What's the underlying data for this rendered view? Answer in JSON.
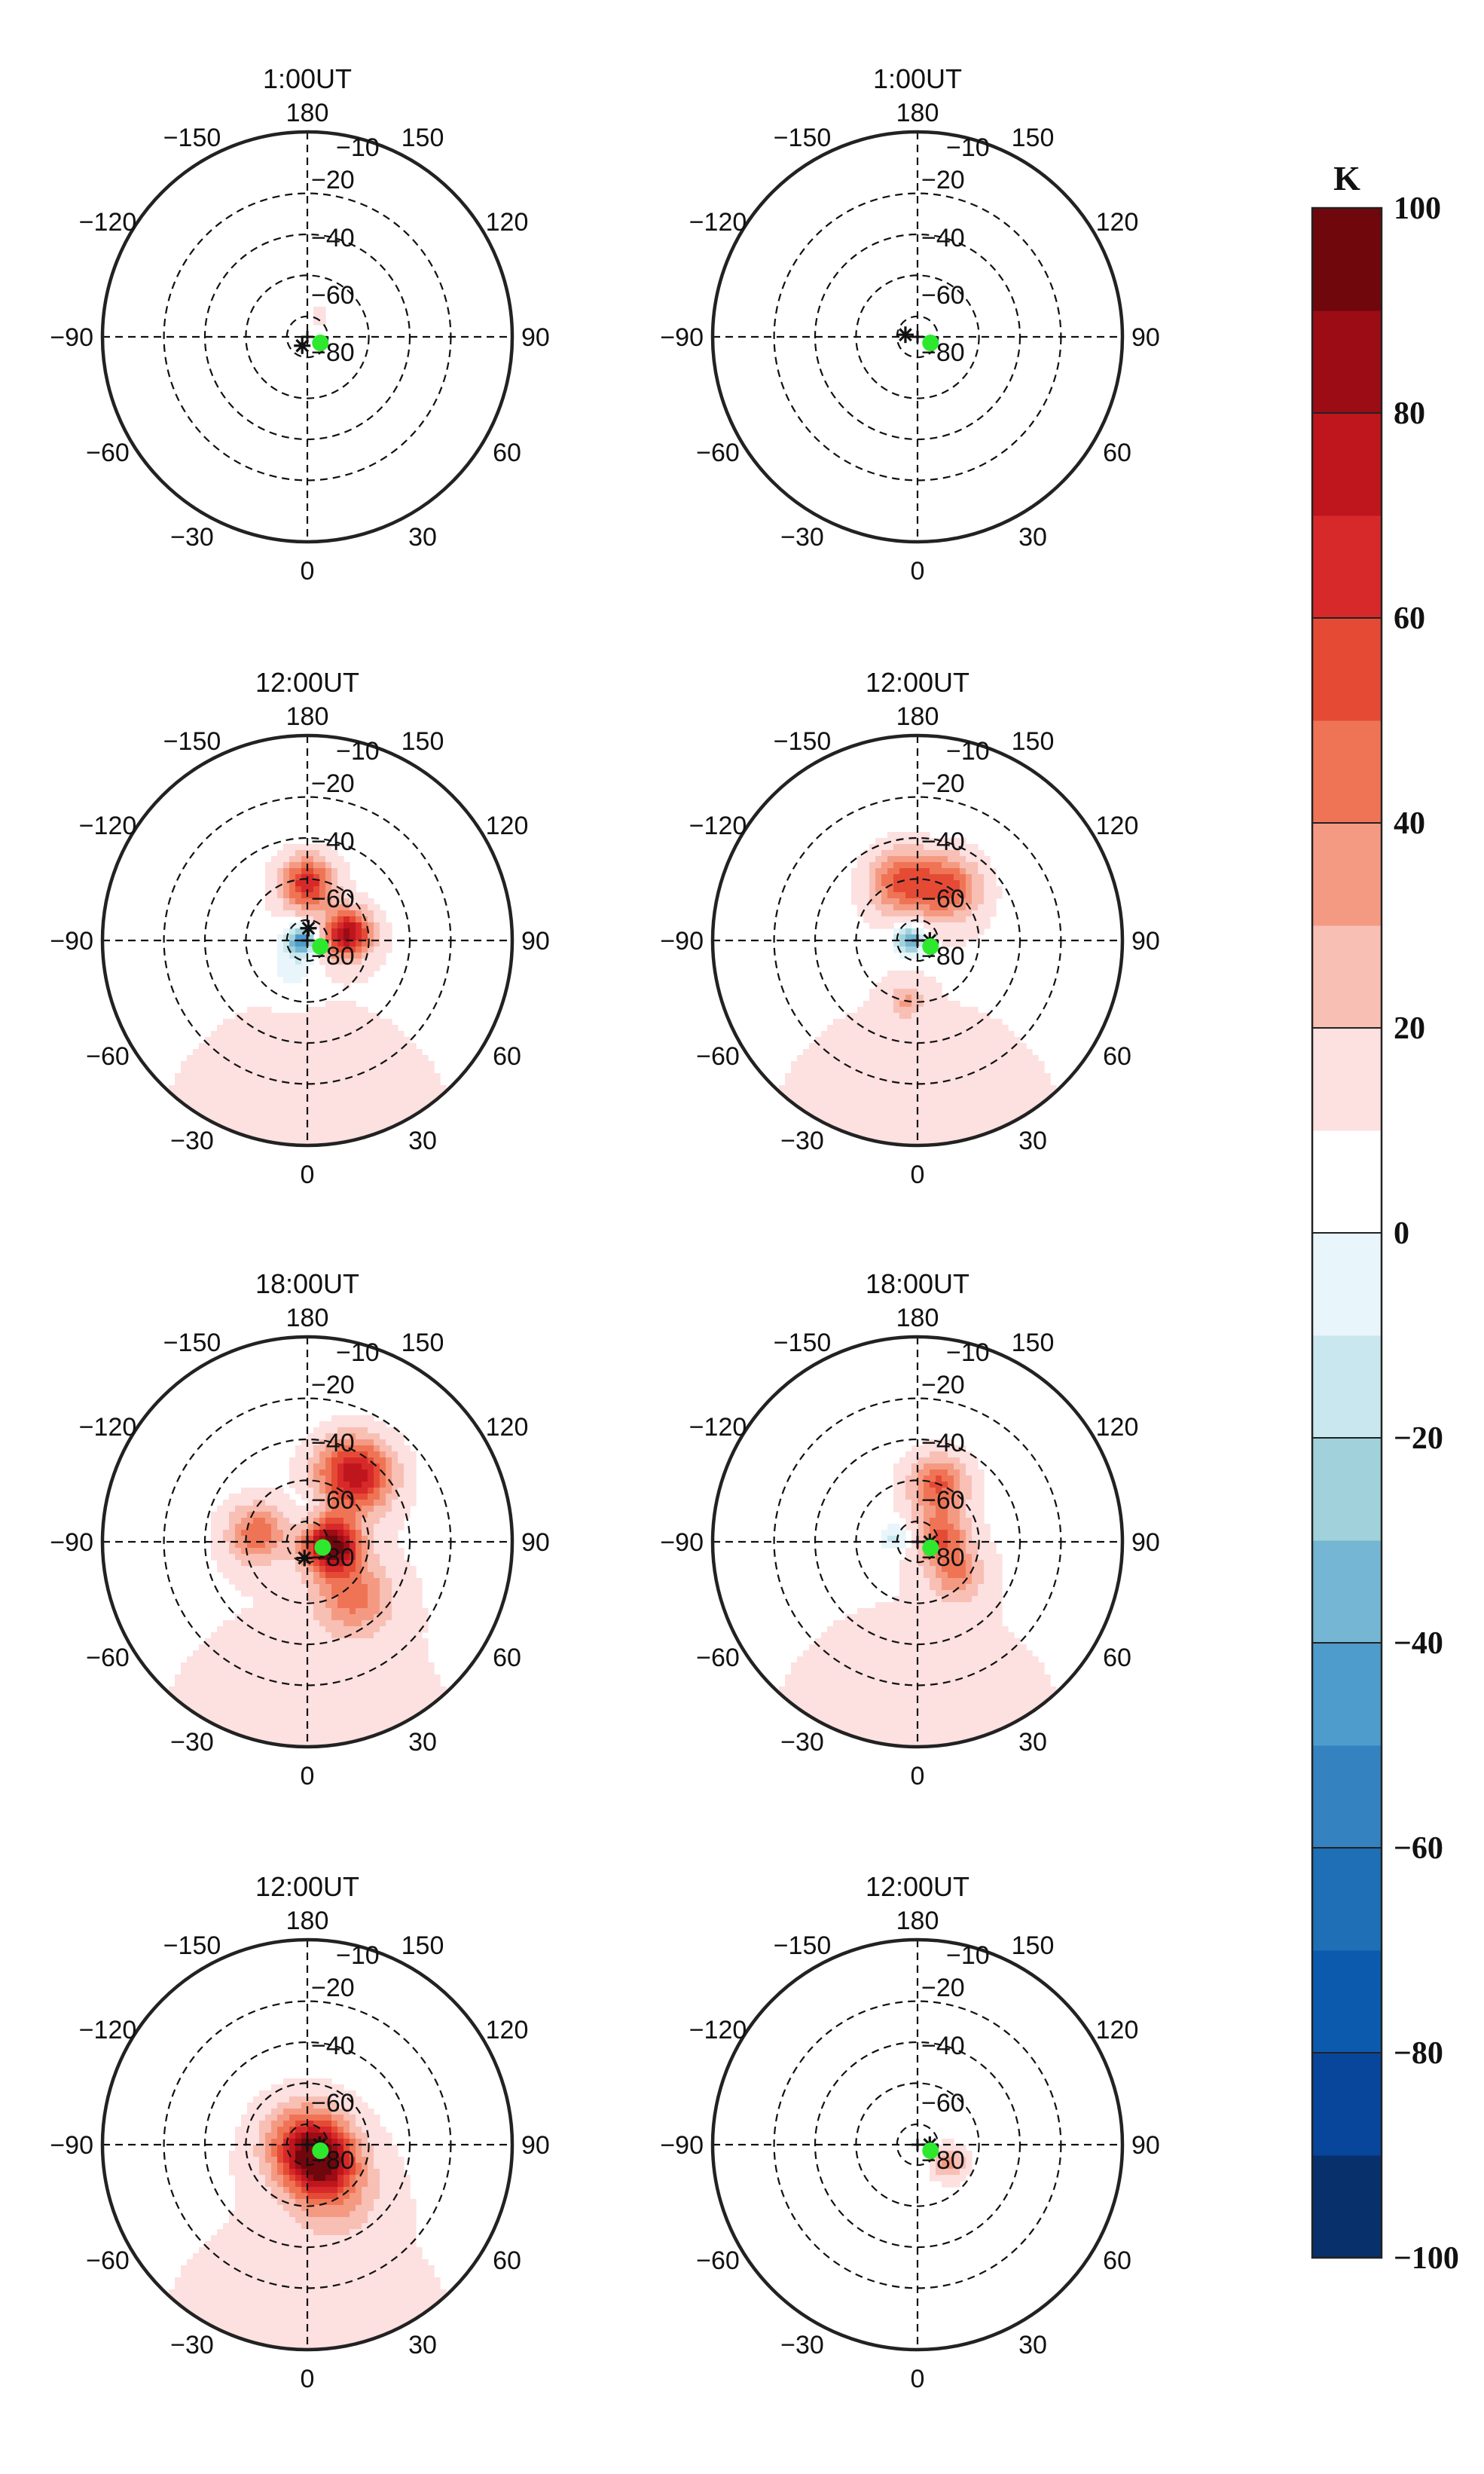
{
  "chart_data": {
    "type": "heatmap",
    "projection": "polar",
    "colorbar": {
      "unit": "K",
      "levels": [
        -100,
        -90,
        -80,
        -70,
        -60,
        -50,
        -40,
        -30,
        -20,
        -10,
        0,
        10,
        20,
        30,
        40,
        50,
        60,
        70,
        80,
        90,
        100
      ],
      "tick_labels": [
        "100",
        "80",
        "60",
        "40",
        "20",
        "0",
        "−20",
        "−40",
        "−60",
        "−80",
        "−100"
      ],
      "ticks": [
        100,
        80,
        60,
        40,
        20,
        0,
        -20,
        -40,
        -60,
        -80,
        -100
      ],
      "colors": [
        "#08306b",
        "#08469c",
        "#0b5aae",
        "#1f6fb6",
        "#3482c0",
        "#4d9ccb",
        "#74b6d3",
        "#a1d2db",
        "#c9e7ee",
        "#e8f5fa",
        "#ffffff",
        "#fde0e0",
        "#f8bfb5",
        "#f59a82",
        "#ef7455",
        "#e54a35",
        "#d7292a",
        "#bf151d",
        "#9b0c15",
        "#6f070d"
      ]
    },
    "polar_axes": {
      "radial_ticks": [
        -10,
        -20,
        -40,
        -60,
        -80
      ],
      "radial_tick_labels": [
        "−10",
        "−20",
        "−40",
        "−60",
        "−80"
      ],
      "angular_ticks": [
        0,
        30,
        60,
        90,
        120,
        150,
        180,
        -150,
        -120,
        -90,
        -60,
        -30
      ],
      "angular_tick_labels": [
        "0",
        "30",
        "60",
        "90",
        "120",
        "150",
        "180",
        "−150",
        "−120",
        "−90",
        "−60",
        "−30"
      ]
    },
    "panels": [
      {
        "title": "1:00UT",
        "column": "left",
        "row": 1,
        "blobs": [
          {
            "lon": 150,
            "colat": 12,
            "value": 12,
            "spread": 6
          }
        ],
        "star_marker": {
          "lon": -30,
          "colat": 5
        },
        "green_marker": {
          "lon": 65,
          "colat": 7
        }
      },
      {
        "title": "1:00UT",
        "column": "right",
        "row": 1,
        "blobs": [],
        "star_marker": {
          "lon": -100,
          "colat": 6
        },
        "green_marker": {
          "lon": 65,
          "colat": 7
        }
      },
      {
        "title": "12:00UT",
        "column": "left",
        "row": 2,
        "blobs": [
          {
            "lon": 0,
            "colat": 100,
            "value": 12,
            "spread": 120
          },
          {
            "lon": 100,
            "colat": 20,
            "value": 75,
            "spread": 8
          },
          {
            "lon": 180,
            "colat": 28,
            "value": 60,
            "spread": 9
          },
          {
            "lon": -90,
            "colat": 3,
            "value": -55,
            "spread": 5
          },
          {
            "lon": -30,
            "colat": 15,
            "value": -15,
            "spread": 8
          }
        ],
        "star_marker": {
          "lon": 175,
          "colat": 6
        },
        "green_marker": {
          "lon": 65,
          "colat": 7
        }
      },
      {
        "title": "12:00UT",
        "column": "right",
        "row": 2,
        "blobs": [
          {
            "lon": 0,
            "colat": 100,
            "value": 12,
            "spread": 120
          },
          {
            "lon": 150,
            "colat": 30,
            "value": 45,
            "spread": 11
          },
          {
            "lon": -165,
            "colat": 30,
            "value": 45,
            "spread": 11
          },
          {
            "lon": -90,
            "colat": 4,
            "value": -50,
            "spread": 5
          },
          {
            "lon": -10,
            "colat": 30,
            "value": 22,
            "spread": 6
          }
        ],
        "star_marker": {
          "lon": 90,
          "colat": 6
        },
        "green_marker": {
          "lon": 65,
          "colat": 7
        }
      },
      {
        "title": "18:00UT",
        "column": "left",
        "row": 3,
        "blobs": [
          {
            "lon": 0,
            "colat": 100,
            "value": 12,
            "spread": 120
          },
          {
            "lon": 80,
            "colat": 12,
            "value": 90,
            "spread": 9
          },
          {
            "lon": 145,
            "colat": 40,
            "value": 70,
            "spread": 13
          },
          {
            "lon": -100,
            "colat": 25,
            "value": 40,
            "spread": 10
          },
          {
            "lon": 40,
            "colat": 35,
            "value": 35,
            "spread": 13
          },
          {
            "lon": 178,
            "colat": 20,
            "value": -8,
            "spread": 6
          }
        ],
        "star_marker": {
          "lon": -10,
          "colat": 8
        },
        "green_marker": {
          "lon": 70,
          "colat": 8
        }
      },
      {
        "title": "18:00UT",
        "column": "right",
        "row": 3,
        "blobs": [
          {
            "lon": 0,
            "colat": 100,
            "value": 12,
            "spread": 120
          },
          {
            "lon": 160,
            "colat": 30,
            "value": 45,
            "spread": 10
          },
          {
            "lon": 100,
            "colat": 12,
            "value": 40,
            "spread": 9
          },
          {
            "lon": 50,
            "colat": 25,
            "value": 30,
            "spread": 9
          },
          {
            "lon": -100,
            "colat": 11,
            "value": -22,
            "spread": 5
          }
        ],
        "star_marker": {
          "lon": 90,
          "colat": 6
        },
        "green_marker": {
          "lon": 65,
          "colat": 7
        }
      },
      {
        "title": "12:00UT",
        "column": "left",
        "row": 4,
        "blobs": [
          {
            "lon": 0,
            "colat": 100,
            "value": 12,
            "spread": 120
          },
          {
            "lon": 0,
            "colat": 0,
            "value": 55,
            "spread": 14
          },
          {
            "lon": 40,
            "colat": 10,
            "value": 48,
            "spread": 10
          },
          {
            "lon": 30,
            "colat": 25,
            "value": 28,
            "spread": 15
          }
        ],
        "star_marker": {
          "lon": 90,
          "colat": 6
        },
        "green_marker": {
          "lon": 65,
          "colat": 7
        }
      },
      {
        "title": "12:00UT",
        "column": "right",
        "row": 4,
        "blobs": [
          {
            "lon": 0,
            "colat": 100,
            "value": 10,
            "spread": 40
          },
          {
            "lon": 60,
            "colat": 18,
            "value": 32,
            "spread": 7
          }
        ],
        "star_marker": {
          "lon": 90,
          "colat": 6
        },
        "green_marker": {
          "lon": 65,
          "colat": 7
        }
      }
    ]
  }
}
